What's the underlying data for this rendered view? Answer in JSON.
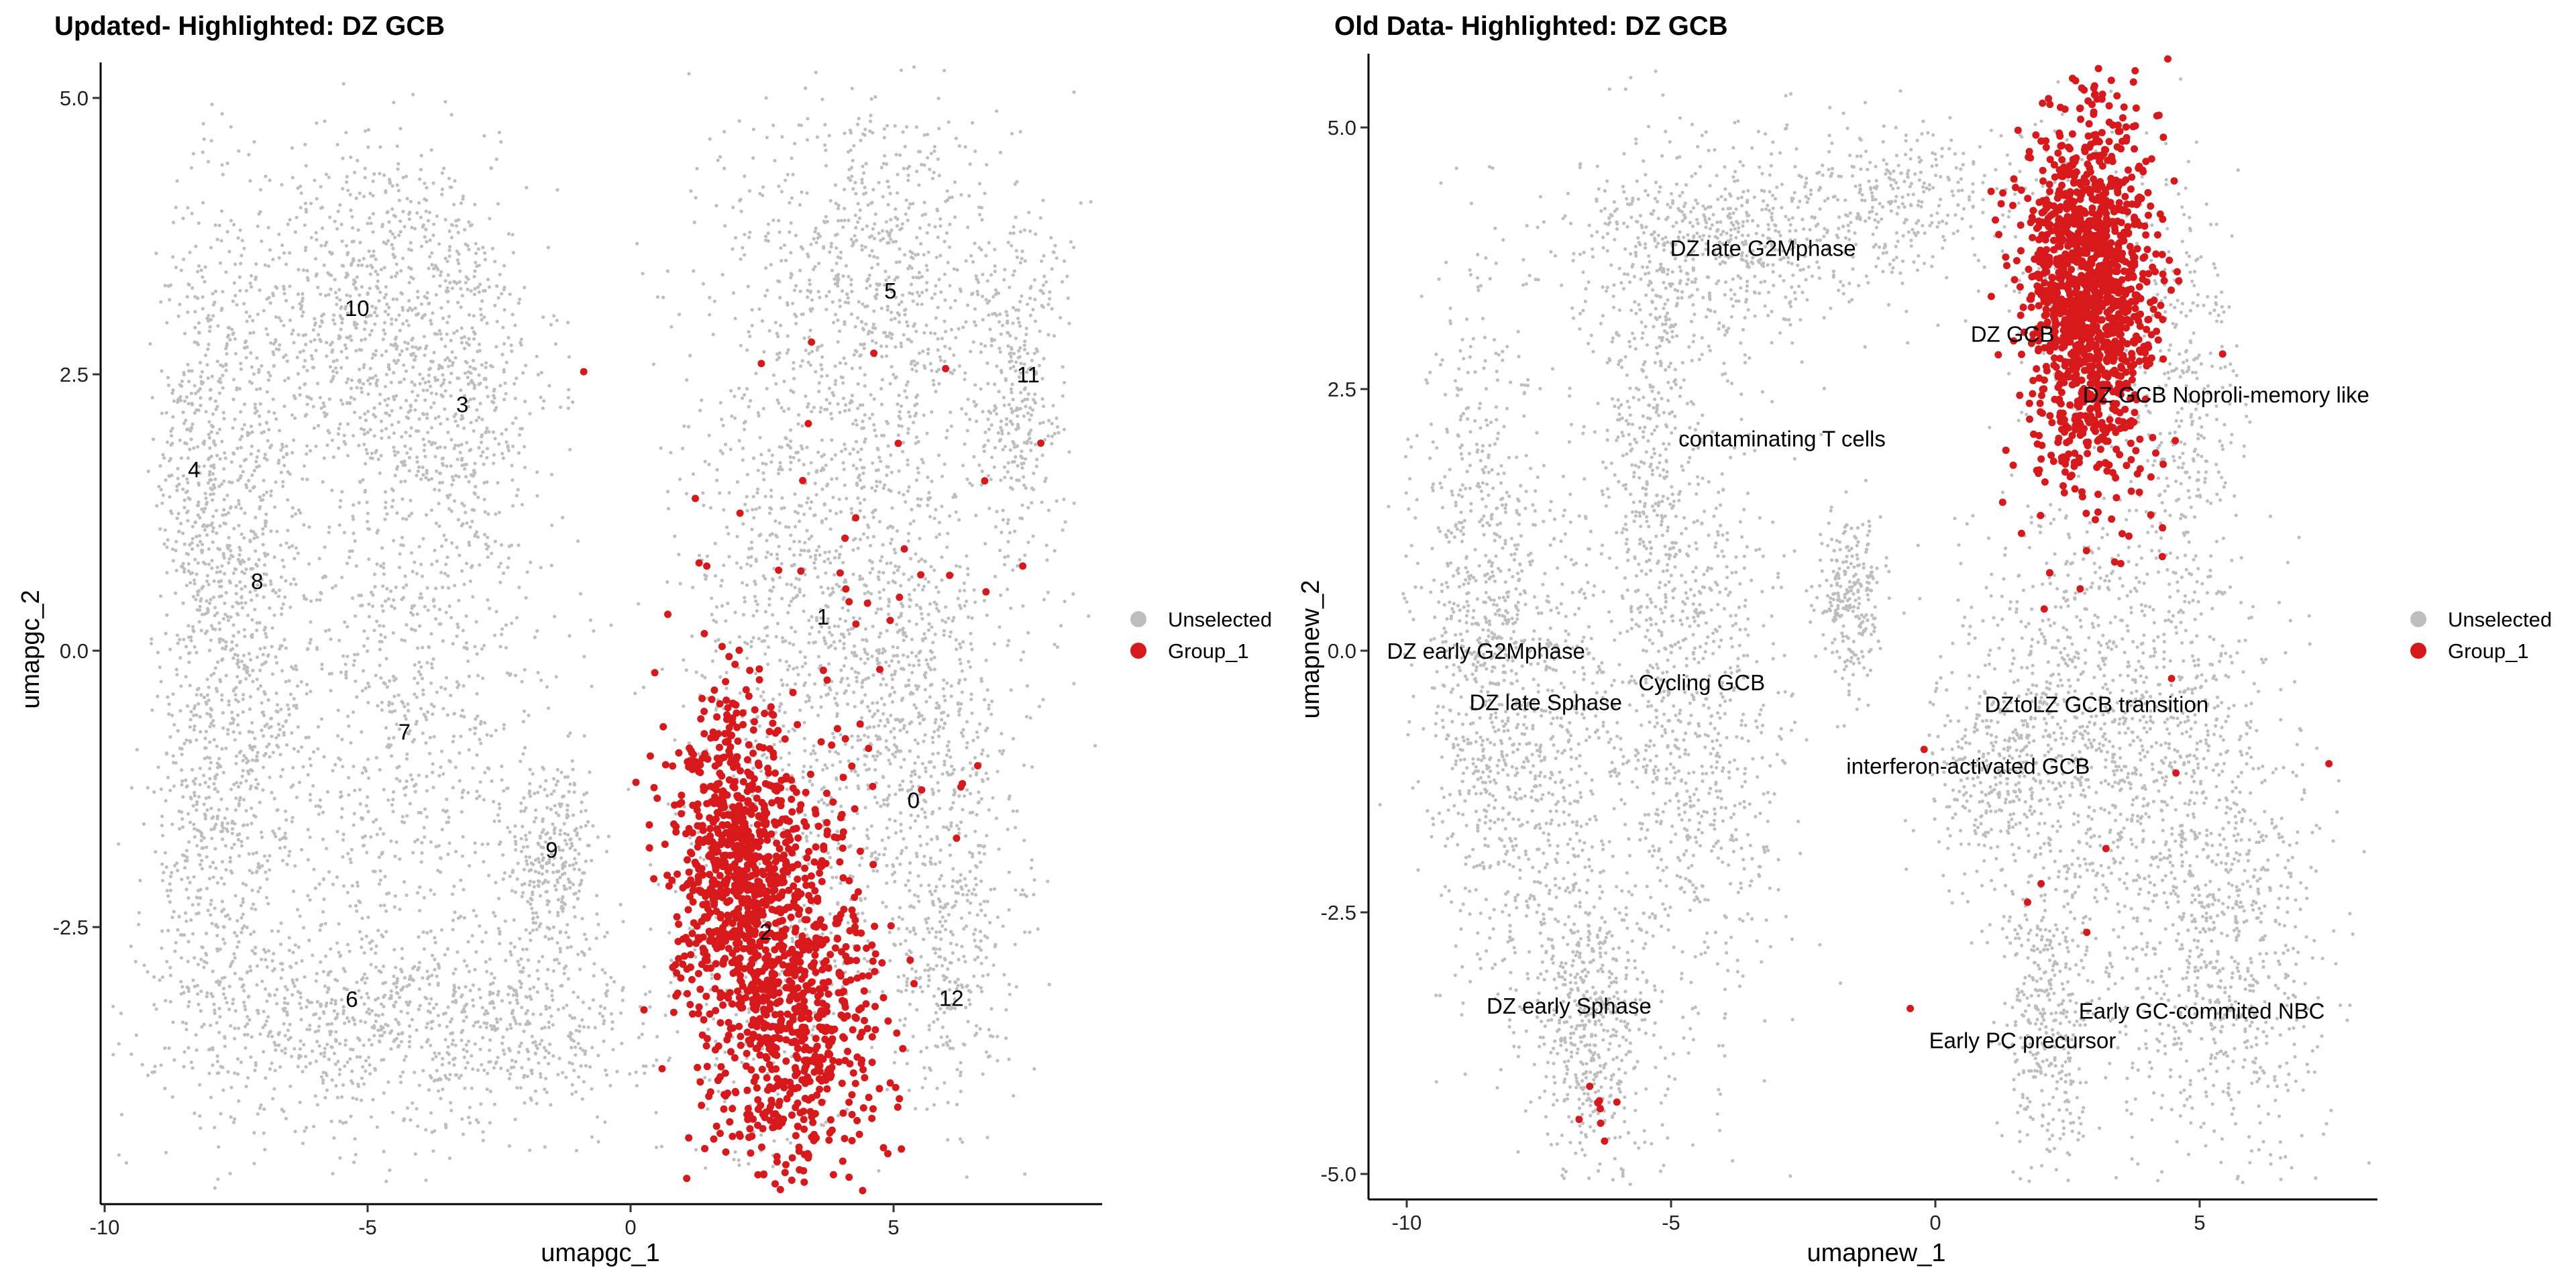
{
  "chart_data": [
    {
      "type": "scatter",
      "title": "Updated- Highlighted: DZ GCB",
      "xlabel": "umapgc_1",
      "ylabel": "umapgc_2",
      "xlim": [
        -10.1,
        8.9
      ],
      "ylim": [
        -4.9,
        5.3
      ],
      "xticks": [
        -10,
        -5,
        0,
        5
      ],
      "xtick_labels": [
        "-10",
        "-5",
        "0",
        "5"
      ],
      "yticks": [
        5.0,
        2.5,
        0.0,
        -2.5
      ],
      "ytick_labels": [
        "5.0",
        "2.5",
        "0.0",
        "-2.5"
      ],
      "grid": false,
      "legend": {
        "placement": "right",
        "entries": [
          {
            "label": "Unselected",
            "color": "#BEBEBE"
          },
          {
            "label": "Group_1",
            "color": "#D7191C"
          }
        ]
      },
      "cluster_labels": [
        {
          "text": "10",
          "x": -5.2,
          "y": 3.1
        },
        {
          "text": "3",
          "x": -3.2,
          "y": 2.23
        },
        {
          "text": "4",
          "x": -8.3,
          "y": 1.64
        },
        {
          "text": "8",
          "x": -7.1,
          "y": 0.63
        },
        {
          "text": "7",
          "x": -4.3,
          "y": -0.73
        },
        {
          "text": "9",
          "x": -1.5,
          "y": -1.8
        },
        {
          "text": "6",
          "x": -5.3,
          "y": -3.15
        },
        {
          "text": "5",
          "x": 4.94,
          "y": 3.26
        },
        {
          "text": "11",
          "x": 7.56,
          "y": 2.5
        },
        {
          "text": "1",
          "x": 3.66,
          "y": 0.31
        },
        {
          "text": "0",
          "x": 5.38,
          "y": -1.35
        },
        {
          "text": "2",
          "x": 2.57,
          "y": -2.54
        },
        {
          "text": "12",
          "x": 6.1,
          "y": -3.14
        }
      ],
      "unselected_clusters": [
        {
          "cx": -5.3,
          "cy": 3.1,
          "sx": 1.3,
          "sy": 0.8,
          "n": 700
        },
        {
          "cx": -3.4,
          "cy": 2.4,
          "sx": 1.0,
          "sy": 0.9,
          "n": 500
        },
        {
          "cx": -8.2,
          "cy": 1.5,
          "sx": 0.4,
          "sy": 1.3,
          "n": 450
        },
        {
          "cx": -7.2,
          "cy": 0.0,
          "sx": 0.5,
          "sy": 1.6,
          "n": 600
        },
        {
          "cx": -4.3,
          "cy": -0.6,
          "sx": 1.5,
          "sy": 1.5,
          "n": 900
        },
        {
          "cx": -5.3,
          "cy": -3.4,
          "sx": 1.8,
          "sy": 0.5,
          "n": 650
        },
        {
          "cx": -8.2,
          "cy": -2.0,
          "sx": 0.5,
          "sy": 1.0,
          "n": 300
        },
        {
          "cx": -1.5,
          "cy": -1.9,
          "sx": 0.45,
          "sy": 0.45,
          "n": 300
        },
        {
          "cx": -1.8,
          "cy": -3.4,
          "sx": 1.2,
          "sy": 0.4,
          "n": 300
        },
        {
          "cx": 4.6,
          "cy": 3.4,
          "sx": 1.4,
          "sy": 0.9,
          "n": 800
        },
        {
          "cx": 7.4,
          "cy": 2.3,
          "sx": 0.45,
          "sy": 0.8,
          "n": 300
        },
        {
          "cx": 3.8,
          "cy": 0.6,
          "sx": 1.4,
          "sy": 1.1,
          "n": 900
        },
        {
          "cx": 5.6,
          "cy": -1.0,
          "sx": 1.0,
          "sy": 1.2,
          "n": 700
        },
        {
          "cx": 2.6,
          "cy": -2.5,
          "sx": 1.0,
          "sy": 1.1,
          "n": 400
        },
        {
          "cx": 6.0,
          "cy": -3.0,
          "sx": 0.5,
          "sy": 0.6,
          "n": 200
        }
      ],
      "selected_clusters": [
        {
          "cx": 2.0,
          "cy": -1.9,
          "sx": 0.6,
          "sy": 0.7,
          "n": 700
        },
        {
          "cx": 3.1,
          "cy": -3.2,
          "sx": 0.8,
          "sy": 0.9,
          "n": 800
        },
        {
          "cx": 4.5,
          "cy": 0.5,
          "sx": 1.8,
          "sy": 1.4,
          "n": 45
        }
      ]
    },
    {
      "type": "scatter",
      "title": "Old Data- Highlighted: DZ GCB",
      "xlabel": "umapnew_1",
      "ylabel": "umapnew_2",
      "xlim": [
        -10.7,
        8.4
      ],
      "ylim": [
        -5.2,
        5.6
      ],
      "xticks": [
        -10,
        -5,
        0,
        5
      ],
      "xtick_labels": [
        "-10",
        "-5",
        "0",
        "5"
      ],
      "yticks": [
        5.0,
        2.5,
        0.0,
        -2.5,
        -5.0
      ],
      "ytick_labels": [
        "5.0",
        "2.5",
        "0.0",
        "-2.5",
        "-5.0"
      ],
      "grid": false,
      "legend": {
        "placement": "right",
        "entries": [
          {
            "label": "Unselected",
            "color": "#BEBEBE"
          },
          {
            "label": "Group_1",
            "color": "#D7191C"
          }
        ]
      },
      "cluster_labels": [
        {
          "text": "DZ late G2Mphase",
          "x": -3.26,
          "y": 3.85
        },
        {
          "text": "DZ GCB",
          "x": 1.46,
          "y": 3.03
        },
        {
          "text": "DZ GCB Noproli-memory like",
          "x": 5.5,
          "y": 2.45
        },
        {
          "text": "contaminating T cells",
          "x": -2.9,
          "y": 2.03
        },
        {
          "text": "DZ early G2Mphase",
          "x": -8.5,
          "y": 0.0
        },
        {
          "text": "DZ late Sphase",
          "x": -7.37,
          "y": -0.49
        },
        {
          "text": "Cycling GCB",
          "x": -4.42,
          "y": -0.3
        },
        {
          "text": "DZtoLZ GCB transition",
          "x": 3.05,
          "y": -0.51
        },
        {
          "text": "interferon-activated GCB",
          "x": 0.62,
          "y": -1.1
        },
        {
          "text": "DZ early  Sphase",
          "x": -6.93,
          "y": -3.39
        },
        {
          "text": "Early GC-commited NBC",
          "x": 5.04,
          "y": -3.44
        },
        {
          "text": "Early PC precursor",
          "x": 1.65,
          "y": -3.72
        }
      ],
      "unselected_clusters": [
        {
          "cx": -4.0,
          "cy": 3.9,
          "sx": 1.4,
          "sy": 0.5,
          "n": 600
        },
        {
          "cx": -0.5,
          "cy": 4.3,
          "sx": 1.2,
          "sy": 0.35,
          "n": 300
        },
        {
          "cx": -8.6,
          "cy": 0.2,
          "sx": 0.6,
          "sy": 1.6,
          "n": 700
        },
        {
          "cx": -7.4,
          "cy": -0.8,
          "sx": 0.8,
          "sy": 1.2,
          "n": 500
        },
        {
          "cx": -4.6,
          "cy": -0.8,
          "sx": 0.9,
          "sy": 1.6,
          "n": 800
        },
        {
          "cx": -5.4,
          "cy": 2.0,
          "sx": 0.5,
          "sy": 1.2,
          "n": 350
        },
        {
          "cx": -1.6,
          "cy": 0.5,
          "sx": 0.3,
          "sy": 0.45,
          "n": 250
        },
        {
          "cx": -6.5,
          "cy": -3.6,
          "sx": 0.6,
          "sy": 0.7,
          "n": 500
        },
        {
          "cx": 2.8,
          "cy": 3.5,
          "sx": 0.8,
          "sy": 0.9,
          "n": 150
        },
        {
          "cx": 4.8,
          "cy": 2.4,
          "sx": 0.5,
          "sy": 1.0,
          "n": 300
        },
        {
          "cx": 3.2,
          "cy": -0.6,
          "sx": 1.4,
          "sy": 1.0,
          "n": 1000
        },
        {
          "cx": 1.2,
          "cy": -1.1,
          "sx": 0.6,
          "sy": 0.5,
          "n": 250
        },
        {
          "cx": 2.2,
          "cy": -3.5,
          "sx": 0.5,
          "sy": 0.8,
          "n": 400
        },
        {
          "cx": 5.3,
          "cy": -2.8,
          "sx": 1.0,
          "sy": 1.1,
          "n": 800
        }
      ],
      "selected_clusters": [
        {
          "cx": 2.9,
          "cy": 3.4,
          "sx": 0.6,
          "sy": 0.9,
          "n": 1400
        },
        {
          "cx": 3.0,
          "cy": -1.0,
          "sx": 2.4,
          "sy": 1.8,
          "n": 14
        },
        {
          "cx": -6.4,
          "cy": -4.5,
          "sx": 0.3,
          "sy": 0.15,
          "n": 8
        }
      ]
    }
  ]
}
